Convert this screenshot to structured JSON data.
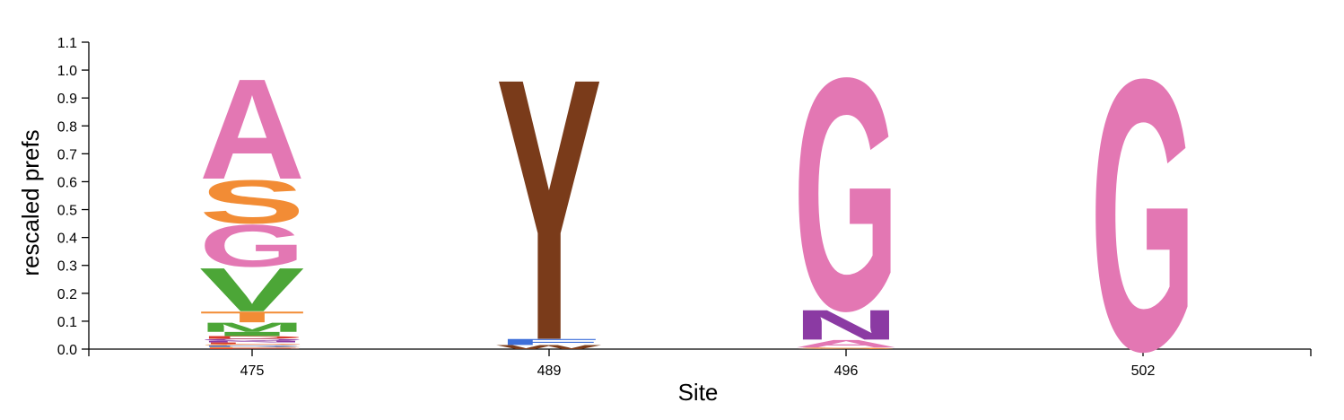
{
  "chart_data": {
    "type": "logo",
    "xlabel": "Site",
    "ylabel": "rescaled prefs",
    "ylim": [
      0,
      1.1
    ],
    "yticks": [
      "0.0",
      "0.1",
      "0.2",
      "0.3",
      "0.4",
      "0.5",
      "0.6",
      "0.7",
      "0.8",
      "0.9",
      "1.0",
      "1.1"
    ],
    "categories": [
      "475",
      "489",
      "496",
      "502"
    ],
    "colors": {
      "A": "#e377b3",
      "G": "#e377b3",
      "S": "#f28c35",
      "T": "#f28c35",
      "V": "#4ca637",
      "I": "#4ca637",
      "M": "#4ca637",
      "L": "#d93a2b",
      "F": "#3d6fd9",
      "Y": "#7a3b1a",
      "W": "#7a3b1a",
      "N": "#8b3aa3",
      "Q": "#8b3aa3",
      "D": "#d93a2b",
      "E": "#d93a2b",
      "K": "#3d6fd9",
      "R": "#3d6fd9",
      "H": "#3d6fd9",
      "C": "#f28c35",
      "P": "#f28c35"
    },
    "stacks": [
      {
        "site": "475",
        "letters": [
          {
            "aa": "E",
            "value": 0.004
          },
          {
            "aa": "P",
            "value": 0.004
          },
          {
            "aa": "R",
            "value": 0.005
          },
          {
            "aa": "C",
            "value": 0.005
          },
          {
            "aa": "L",
            "value": 0.006
          },
          {
            "aa": "N",
            "value": 0.006
          },
          {
            "aa": "Q",
            "value": 0.007
          },
          {
            "aa": "D",
            "value": 0.01
          },
          {
            "aa": "I",
            "value": 0.015
          },
          {
            "aa": "M",
            "value": 0.034
          },
          {
            "aa": "T",
            "value": 0.04
          },
          {
            "aa": "V",
            "value": 0.16
          },
          {
            "aa": "G",
            "value": 0.155
          },
          {
            "aa": "S",
            "value": 0.16
          },
          {
            "aa": "A",
            "value": 0.37
          }
        ]
      },
      {
        "site": "489",
        "letters": [
          {
            "aa": "W",
            "value": 0.015
          },
          {
            "aa": "F",
            "value": 0.022
          },
          {
            "aa": "Y",
            "value": 0.965
          }
        ]
      },
      {
        "site": "496",
        "letters": [
          {
            "aa": "S",
            "value": 0.006
          },
          {
            "aa": "A",
            "value": 0.028
          },
          {
            "aa": "N",
            "value": 0.11
          },
          {
            "aa": "G",
            "value": 0.856
          }
        ]
      },
      {
        "site": "502",
        "letters": [
          {
            "aa": "G",
            "value": 1.0
          }
        ]
      }
    ]
  }
}
